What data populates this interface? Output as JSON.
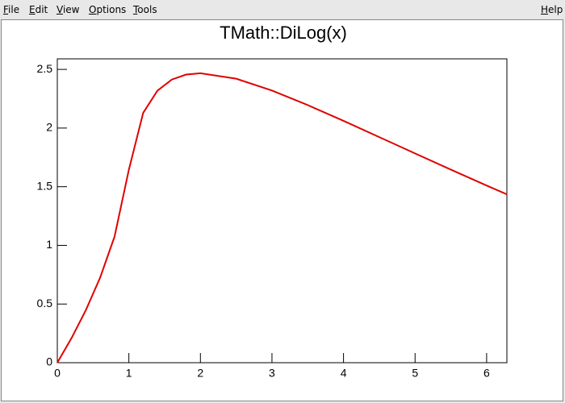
{
  "menu": {
    "left": [
      "File",
      "Edit",
      "View",
      "Options",
      "Tools"
    ],
    "right": "Help"
  },
  "chart_data": {
    "type": "line",
    "title": "TMath::DiLog(x)",
    "x": [
      0,
      0.2,
      0.4,
      0.6,
      0.8,
      1,
      1.2,
      1.4,
      1.6,
      1.8,
      2,
      2.5,
      3,
      3.5,
      4,
      4.5,
      5,
      5.5,
      6,
      6.2832
    ],
    "values": [
      0,
      0.211,
      0.4493,
      0.7276,
      1.0748,
      1.6449,
      2.1294,
      2.3193,
      2.4132,
      2.4559,
      2.4674,
      2.4208,
      2.3202,
      2.1959,
      2.0613,
      1.9229,
      1.7838,
      1.646,
      1.5104,
      1.4349
    ],
    "color": "#e00000",
    "xlim": [
      0,
      6.2832
    ],
    "xticks": [
      0,
      1,
      2,
      3,
      4,
      5,
      6
    ],
    "ylim": [
      0,
      2.59
    ],
    "yticks": [
      0,
      0.5,
      1,
      1.5,
      2,
      2.5
    ]
  }
}
